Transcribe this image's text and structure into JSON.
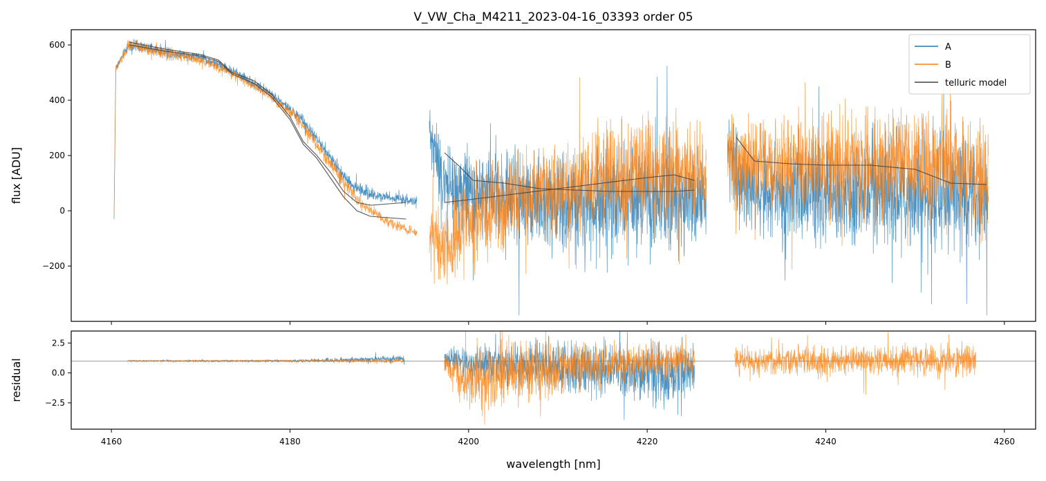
{
  "chart_data": [
    {
      "type": "line",
      "panel": "main",
      "title": "V_VW_Cha_M4211_2023-04-16_03393  order 05",
      "xlabel": "",
      "ylabel": "flux [ADU]",
      "xlim": [
        4155.5,
        4263.5
      ],
      "ylim": [
        -400,
        655
      ],
      "xticks": [
        4160,
        4180,
        4200,
        4220,
        4240,
        4260
      ],
      "yticks": [
        -200,
        0,
        200,
        400,
        600
      ],
      "ytick_labels": [
        "−200",
        "0",
        "200",
        "400",
        "600"
      ],
      "legend_position": "top-right",
      "series": [
        {
          "name": "A",
          "color": "#1f77b4",
          "x": [
            4160.3,
            4160.5,
            4162,
            4166,
            4170,
            4174,
            4178,
            4181,
            4183,
            4185,
            4187,
            4189,
            4191,
            4193,
            4194.2,
            4195.6,
            4197,
            4200,
            4205,
            4210,
            4215,
            4220,
            4225,
            4226.6,
            4229,
            4231,
            4235,
            4240,
            4245,
            4250,
            4255,
            4258.2
          ],
          "y": [
            -30,
            520,
            600,
            575,
            555,
            500,
            420,
            340,
            260,
            170,
            90,
            60,
            50,
            40,
            30,
            300,
            100,
            80,
            40,
            30,
            30,
            40,
            40,
            20,
            200,
            80,
            70,
            60,
            70,
            60,
            60,
            40
          ],
          "spread": [
            0,
            20,
            30,
            30,
            25,
            25,
            25,
            30,
            30,
            35,
            40,
            30,
            25,
            25,
            25,
            140,
            200,
            230,
            250,
            250,
            260,
            270,
            280,
            200,
            200,
            240,
            260,
            270,
            280,
            280,
            280,
            280
          ]
        },
        {
          "name": "B",
          "color": "#ff7f0e",
          "x": [
            4160.3,
            4160.5,
            4162,
            4166,
            4170,
            4174,
            4178,
            4181,
            4183,
            4185,
            4187,
            4189,
            4191,
            4193,
            4194.2,
            4195.6,
            4197,
            4200,
            4205,
            4210,
            4215,
            4220,
            4225,
            4226.6,
            4229,
            4231,
            4235,
            4240,
            4245,
            4250,
            4255,
            4258.2
          ],
          "y": [
            -10,
            510,
            600,
            570,
            545,
            490,
            410,
            330,
            240,
            150,
            60,
            0,
            -40,
            -70,
            -80,
            -100,
            -150,
            -40,
            40,
            90,
            120,
            140,
            150,
            120,
            200,
            180,
            170,
            170,
            175,
            170,
            160,
            100
          ],
          "spread": [
            0,
            20,
            30,
            30,
            25,
            25,
            25,
            30,
            30,
            35,
            35,
            25,
            25,
            25,
            25,
            160,
            220,
            230,
            230,
            240,
            250,
            260,
            260,
            200,
            200,
            240,
            270,
            280,
            280,
            280,
            280,
            280
          ]
        },
        {
          "name": "telluric model",
          "color": "#404040",
          "x": [
            4162,
            4166,
            4170,
            4172,
            4173.5,
            4176,
            4178,
            4180,
            4181.5,
            4183,
            4184.5,
            4186,
            4187.5,
            4189,
            4191,
            4193,
            4197.3,
            4199,
            4200.5,
            4204,
            4208,
            4212,
            4216,
            4220,
            4223,
            4225.3,
            4230,
            4232,
            4236,
            4240,
            4245,
            4250,
            4254,
            4258
          ],
          "y": [
            610,
            585,
            565,
            545,
            500,
            470,
            420,
            340,
            250,
            200,
            140,
            70,
            30,
            20,
            25,
            30,
            210,
            160,
            110,
            100,
            80,
            75,
            70,
            70,
            70,
            75,
            265,
            180,
            170,
            165,
            165,
            150,
            100,
            95
          ]
        },
        {
          "name": "telluric model",
          "legend": false,
          "color": "#404040",
          "x": [
            4162,
            4166,
            4170,
            4172,
            4173.5,
            4176,
            4178,
            4180,
            4181.5,
            4183,
            4184.5,
            4186,
            4187.5,
            4189,
            4191,
            4193,
            4197.3,
            4200,
            4205,
            4210,
            4215,
            4220,
            4223,
            4225.3
          ],
          "y": [
            600,
            578,
            560,
            540,
            495,
            460,
            410,
            330,
            240,
            190,
            120,
            50,
            0,
            -20,
            -25,
            -30,
            30,
            40,
            60,
            80,
            100,
            120,
            130,
            110
          ]
        }
      ]
    },
    {
      "type": "line",
      "panel": "residual",
      "title": "",
      "xlabel": "wavelength [nm]",
      "ylabel": "residual",
      "xlim": [
        4155.5,
        4263.5
      ],
      "ylim": [
        -4.7,
        3.5
      ],
      "xticks": [
        4160,
        4180,
        4200,
        4220,
        4240,
        4260
      ],
      "yticks": [
        -2.5,
        0.0,
        2.5
      ],
      "ytick_labels": [
        "−2.5",
        "0.0",
        "2.5"
      ],
      "reference_line": 1.0,
      "series": [
        {
          "name": "A",
          "color": "#1f77b4",
          "x": [
            4161.8,
            4170,
            4180,
            4188,
            4192.8,
            4197.3,
            4200,
            4205,
            4210,
            4215,
            4220,
            4225.3
          ],
          "y": [
            1.0,
            1.0,
            1.0,
            1.1,
            1.2,
            1.2,
            0.8,
            0.6,
            0.5,
            0.3,
            0.1,
            0.0
          ],
          "spread": [
            0.1,
            0.1,
            0.15,
            0.35,
            0.4,
            1.2,
            2.0,
            2.6,
            3.0,
            3.2,
            3.3,
            3.4
          ]
        },
        {
          "name": "B",
          "color": "#ff7f0e",
          "x": [
            4161.8,
            4170,
            4180,
            4188,
            4192.8,
            4197.3,
            4200,
            4205,
            4210,
            4215,
            4220,
            4225.3,
            4229.8,
            4235,
            4240,
            4245,
            4250,
            4256.8
          ],
          "y": [
            1.0,
            1.0,
            1.0,
            1.0,
            1.0,
            0.9,
            -0.5,
            0.0,
            0.5,
            0.7,
            0.8,
            0.9,
            1.0,
            1.0,
            1.0,
            1.0,
            1.0,
            1.0
          ],
          "spread": [
            0.08,
            0.1,
            0.12,
            0.2,
            0.3,
            1.6,
            3.5,
            3.5,
            3.2,
            2.5,
            2.2,
            2.0,
            1.5,
            1.8,
            1.8,
            1.7,
            1.8,
            1.8
          ]
        }
      ]
    }
  ]
}
